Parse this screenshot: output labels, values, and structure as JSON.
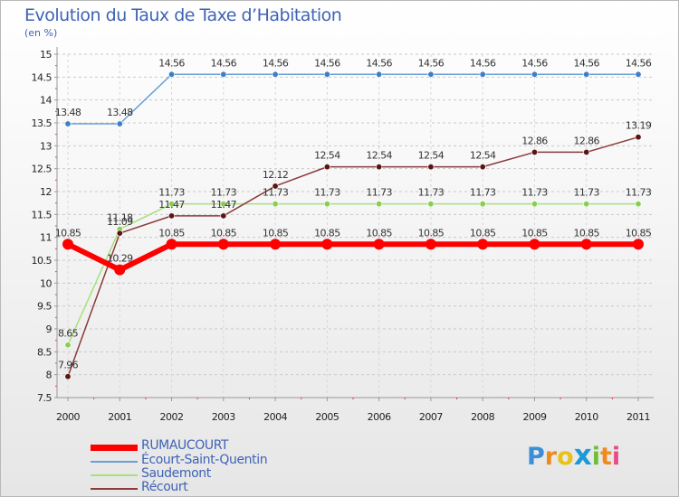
{
  "chart_data": {
    "type": "line",
    "title": "Evolution du Taux de Taxe d’Habitation",
    "unit_label": "(en %)",
    "x": [
      "2000",
      "2001",
      "2002",
      "2003",
      "2004",
      "2005",
      "2006",
      "2007",
      "2008",
      "2009",
      "2010",
      "2011"
    ],
    "y_ticks": [
      "7.5",
      "8",
      "8.5",
      "9",
      "9.5",
      "10",
      "10.5",
      "11",
      "11.5",
      "12",
      "12.5",
      "13",
      "13.5",
      "14",
      "14.5",
      "15"
    ],
    "ylim": [
      7.5,
      15
    ],
    "grid": "horizontal dashed",
    "legend_position": "bottom-left",
    "series": [
      {
        "name": "RUMAUCOURT",
        "color": "#ff0000",
        "marker": "#ff0000",
        "width": 6,
        "marker_r": 6,
        "values": [
          10.85,
          10.29,
          10.85,
          10.85,
          10.85,
          10.85,
          10.85,
          10.85,
          10.85,
          10.85,
          10.85,
          10.85
        ],
        "labels": [
          "10.85",
          "10.29",
          "10.85",
          "10.85",
          "10.85",
          "10.85",
          "10.85",
          "10.85",
          "10.85",
          "10.85",
          "10.85",
          "10.85"
        ]
      },
      {
        "name": "Écourt-Saint-Quentin",
        "color": "#6aa0d6",
        "marker": "#3d7fc6",
        "width": 1.5,
        "marker_r": 3.2,
        "values": [
          13.48,
          13.48,
          14.56,
          14.56,
          14.56,
          14.56,
          14.56,
          14.56,
          14.56,
          14.56,
          14.56,
          14.56
        ],
        "labels": [
          "13.48",
          "13.48",
          "14.56",
          "14.56",
          "14.56",
          "14.56",
          "14.56",
          "14.56",
          "14.56",
          "14.56",
          "14.56",
          "14.56"
        ]
      },
      {
        "name": "Saudemont",
        "color": "#a8e07c",
        "marker": "#86d04e",
        "width": 1.5,
        "marker_r": 3.2,
        "values": [
          8.65,
          11.18,
          11.73,
          11.73,
          11.73,
          11.73,
          11.73,
          11.73,
          11.73,
          11.73,
          11.73,
          11.73
        ],
        "labels": [
          "8.65",
          "11.18",
          "11.73",
          "11.73",
          "11.73",
          "11.73",
          "11.73",
          "11.73",
          "11.73",
          "11.73",
          "11.73",
          "11.73"
        ]
      },
      {
        "name": "Récourt",
        "color": "#8a3b3b",
        "marker": "#5a1414",
        "width": 1.5,
        "marker_r": 3.2,
        "values": [
          7.96,
          11.09,
          11.47,
          11.47,
          12.12,
          12.54,
          12.54,
          12.54,
          12.54,
          12.86,
          12.86,
          13.19
        ],
        "labels": [
          "7.96",
          "11.09",
          "11.47",
          "11.47",
          "12.12",
          "12.54",
          "12.54",
          "12.54",
          "12.54",
          "12.86",
          "12.86",
          "13.19"
        ]
      }
    ]
  },
  "logo": {
    "letters": [
      "P",
      "r",
      "o",
      "x",
      "i",
      "t",
      "i"
    ],
    "colors": [
      "#3b8fd9",
      "#f08a1c",
      "#e8c21a",
      "#1a9ad8",
      "#6cbf3a",
      "#f08a1c",
      "#e84a8a"
    ]
  }
}
